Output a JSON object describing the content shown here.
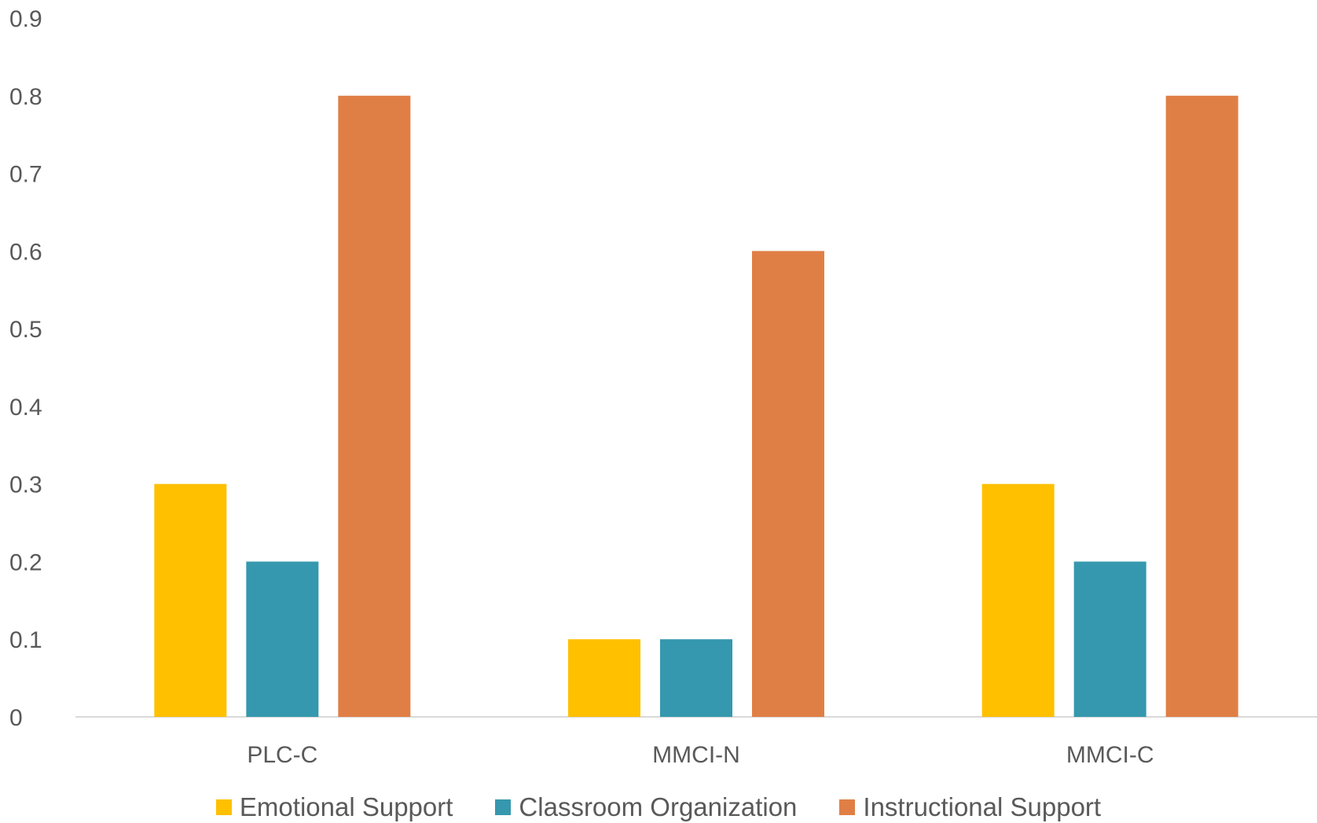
{
  "chart_data": {
    "type": "bar",
    "categories": [
      "PLC-C",
      "MMCI-N",
      "MMCI-C"
    ],
    "series": [
      {
        "name": "Emotional Support",
        "values": [
          0.3,
          0.1,
          0.3
        ],
        "color": "#FFC000"
      },
      {
        "name": "Classroom Organization",
        "values": [
          0.2,
          0.1,
          0.2
        ],
        "color": "#3598AE"
      },
      {
        "name": "Instructional Support",
        "values": [
          0.8,
          0.6,
          0.8
        ],
        "color": "#E07F45"
      }
    ],
    "y_ticks": [
      "0",
      "0.1",
      "0.2",
      "0.3",
      "0.4",
      "0.5",
      "0.6",
      "0.7",
      "0.8",
      "0.9"
    ],
    "ylim": [
      0,
      0.9
    ],
    "legend_position": "bottom",
    "grid": false,
    "title": "",
    "xlabel": "",
    "ylabel": ""
  }
}
